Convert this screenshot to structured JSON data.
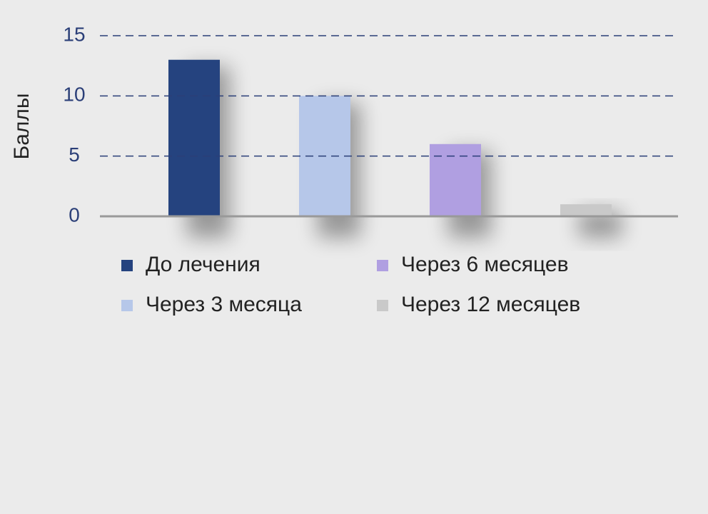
{
  "chart_data": {
    "type": "bar",
    "ylabel": "Баллы",
    "categories": [
      null
    ],
    "series": [
      {
        "name": "До лечения",
        "color": "#25437f",
        "values": [
          13
        ]
      },
      {
        "name": "Через 3 месяца",
        "color": "#b6c7e9",
        "values": [
          10
        ]
      },
      {
        "name": "Через 6 месяцев",
        "color": "#b09fe1",
        "values": [
          6
        ]
      },
      {
        "name": "Через 12 месяцев",
        "color": "#c9c9c9",
        "values": [
          1
        ]
      }
    ],
    "ylim": [
      0,
      15
    ],
    "yticks": [
      0,
      5,
      10,
      15
    ],
    "grid": true
  }
}
